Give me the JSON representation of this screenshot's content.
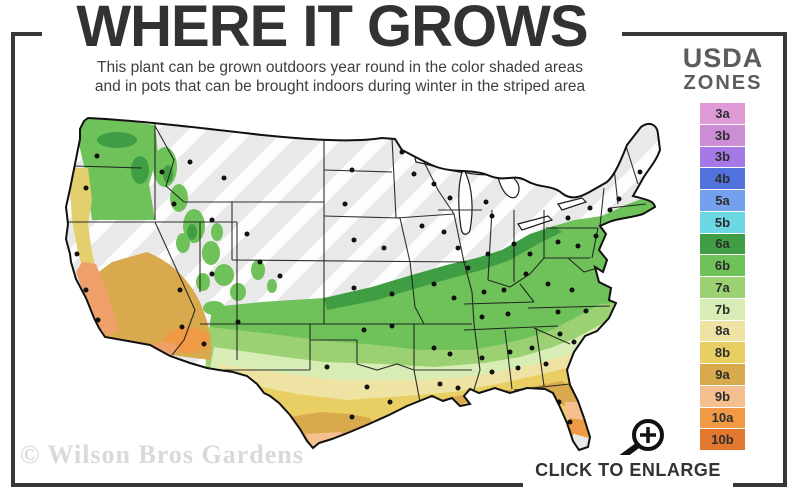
{
  "header": {
    "title": "WHERE IT GROWS",
    "subtitle_line1": "This plant can be grown outdoors year round in the color shaded areas",
    "subtitle_line2": "and in pots that can be brought indoors during winter in the striped area"
  },
  "legend": {
    "title_line1": "USDA",
    "title_line2": "ZONES",
    "zones": [
      {
        "label": "3a",
        "color": "#df9ad8"
      },
      {
        "label": "3b",
        "color": "#cb8dd4"
      },
      {
        "label": "3b",
        "color": "#a67ae6"
      },
      {
        "label": "4b",
        "color": "#5273de"
      },
      {
        "label": "5a",
        "color": "#74a0ee"
      },
      {
        "label": "5b",
        "color": "#6cd8e4"
      },
      {
        "label": "6a",
        "color": "#3f9e43"
      },
      {
        "label": "6b",
        "color": "#6fc15a"
      },
      {
        "label": "7a",
        "color": "#9cd173"
      },
      {
        "label": "7b",
        "color": "#d8edb5"
      },
      {
        "label": "8a",
        "color": "#efe3a3"
      },
      {
        "label": "8b",
        "color": "#e9cf63"
      },
      {
        "label": "9a",
        "color": "#d9a94d"
      },
      {
        "label": "9b",
        "color": "#f5c08f"
      },
      {
        "label": "10a",
        "color": "#f09a46"
      },
      {
        "label": "10b",
        "color": "#e2772f"
      }
    ]
  },
  "map": {
    "region": "Continental United States",
    "gray_striped_area_color": "#e9e9e9",
    "stripe_color": "#ffffff"
  },
  "footer": {
    "watermark": "© Wilson Bros Gardens",
    "enlarge_label": "CLICK TO ENLARGE",
    "magnifier_icon": "magnifier-plus-icon"
  },
  "colors": {
    "frame": "#383838",
    "title_text": "#323232",
    "subtitle_text": "#3e3e3e",
    "legend_title_text": "#5c5c5c",
    "watermark_text": "#d9d9d9"
  }
}
